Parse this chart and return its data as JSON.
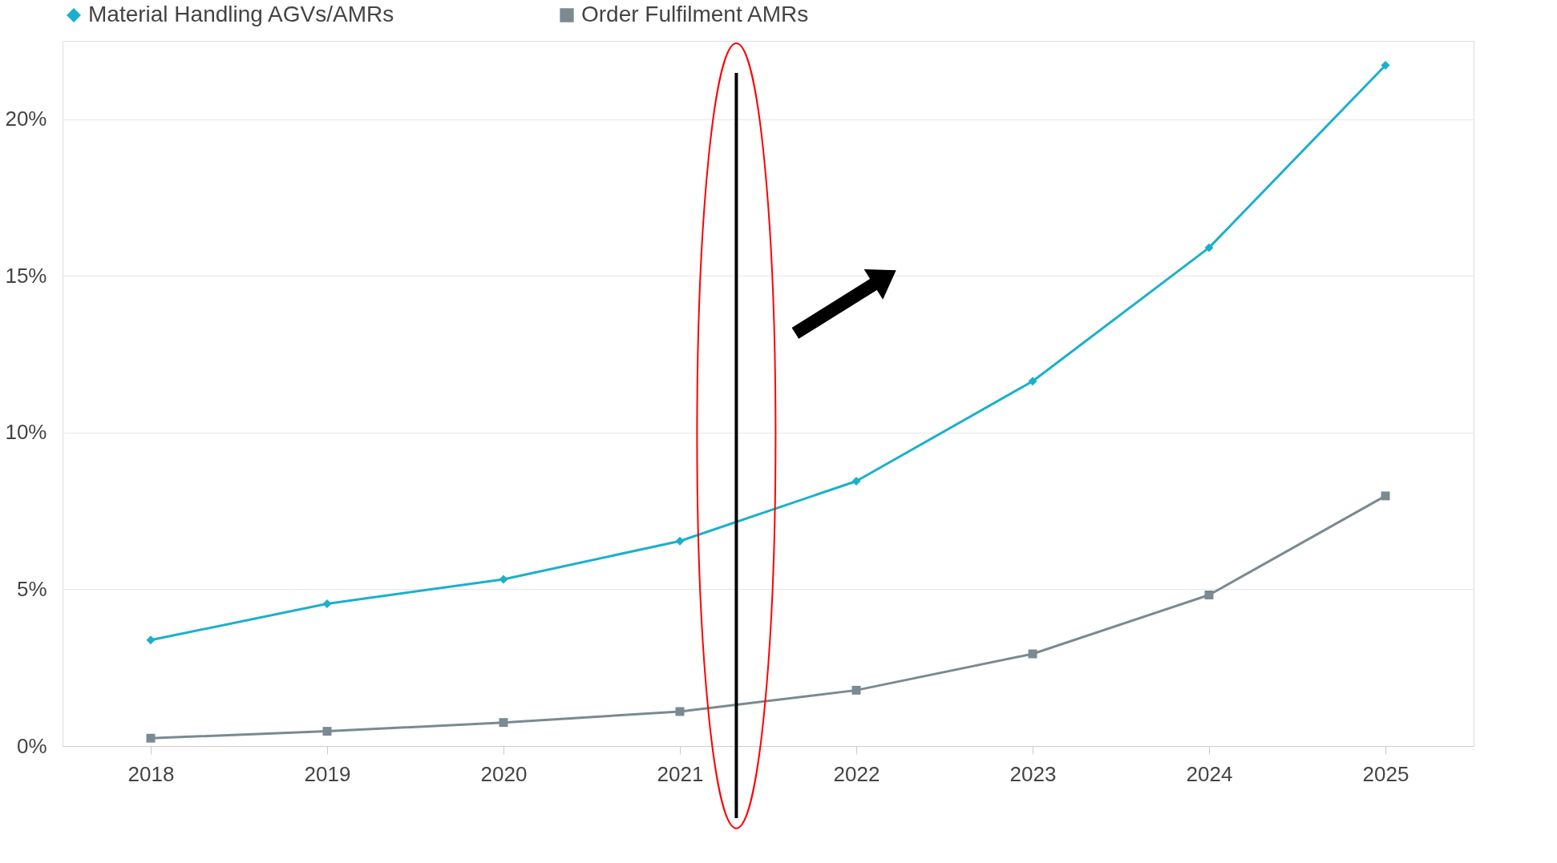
{
  "chart_data": {
    "type": "line",
    "x": [
      2018,
      2019,
      2020,
      2021,
      2022,
      2023,
      2024,
      2025
    ],
    "series": [
      {
        "name": "Material Handling AGVs/AMRs",
        "color": "#1ab0cc",
        "marker": "diamond",
        "values": [
          3.38,
          4.54,
          5.32,
          6.54,
          8.45,
          11.64,
          15.9,
          21.72
        ]
      },
      {
        "name": "Order Fulfilment AMRs",
        "color": "#7a8a90",
        "marker": "square",
        "values": [
          0.25,
          0.47,
          0.75,
          1.1,
          1.78,
          2.94,
          4.82,
          7.98
        ]
      }
    ],
    "xlim": [
      2017.5,
      2025.5
    ],
    "xticks": [
      2018,
      2019,
      2020,
      2021,
      2022,
      2023,
      2024,
      2025
    ],
    "ylim": [
      0,
      22.5
    ],
    "yticks": [
      {
        "value": 0,
        "label": "0%"
      },
      {
        "value": 5,
        "label": "5%"
      },
      {
        "value": 10,
        "label": "10%"
      },
      {
        "value": 15,
        "label": "15%"
      },
      {
        "value": 20,
        "label": "20%"
      }
    ],
    "ref_lines": [
      {
        "axis": "x",
        "value": 2021.32,
        "color": "#000000"
      }
    ],
    "grid": "y",
    "legend": "top"
  }
}
